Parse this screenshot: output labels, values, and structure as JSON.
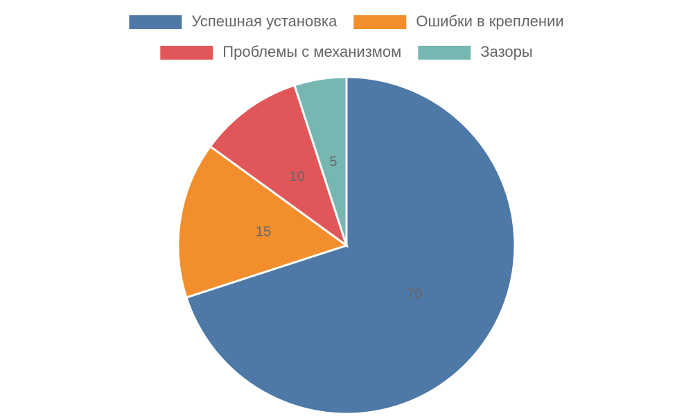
{
  "chart_data": {
    "type": "pie",
    "categories": [
      "Успешная установка",
      "Ошибки в креплении",
      "Проблемы с механизмом",
      "Зазоры"
    ],
    "values": [
      70,
      15,
      10,
      5
    ],
    "colors": [
      "#4e79a7",
      "#f28e2b",
      "#e15759",
      "#76b7b2"
    ],
    "legend": "top"
  }
}
